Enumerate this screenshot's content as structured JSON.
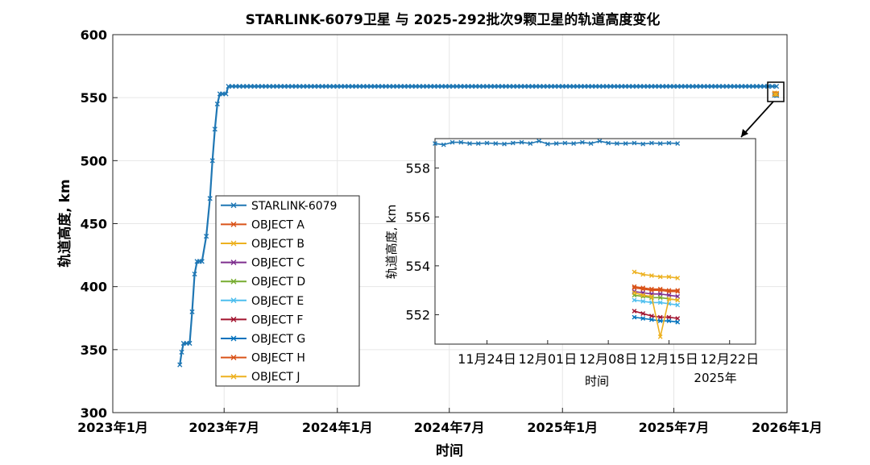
{
  "chart_data": [
    {
      "type": "line",
      "title": "STARLINK-6079卫星 与 2025-292批次9颗卫星的轨道高度变化",
      "xlabel": "时间",
      "ylabel": "轨道高度, km",
      "ylim": [
        300,
        600
      ],
      "yticks": [
        "300",
        "350",
        "400",
        "450",
        "500",
        "550",
        "600"
      ],
      "xticks": [
        "2023年1月",
        "2023年7月",
        "2024年1月",
        "2024年7月",
        "2025年1月",
        "2025年7月",
        "2026年1月"
      ],
      "grid": true,
      "legend_position": "center-left",
      "legend": [
        "STARLINK-6079",
        "OBJECT A",
        "OBJECT B",
        "OBJECT C",
        "OBJECT D",
        "OBJECT E",
        "OBJECT F",
        "OBJECT G",
        "OBJECT H",
        "OBJECT J"
      ],
      "series": [
        {
          "name": "STARLINK-6079",
          "color": "#1f77b4",
          "x": [
            "2023-04-20",
            "2023-04-23",
            "2023-04-26",
            "2023-05-01",
            "2023-05-06",
            "2023-05-10",
            "2023-05-14",
            "2023-05-18",
            "2023-05-22",
            "2023-05-26",
            "2023-06-02",
            "2023-06-08",
            "2023-06-12",
            "2023-06-16",
            "2023-06-20",
            "2023-06-24",
            "2023-06-28",
            "2023-07-04",
            "2023-07-08",
            "2023-08-01",
            "2023-10-01",
            "2024-01-01",
            "2024-04-01",
            "2024-07-01",
            "2024-10-01",
            "2025-01-01",
            "2025-04-01",
            "2025-07-01",
            "2025-10-01",
            "2025-12-01",
            "2025-12-15"
          ],
          "y": [
            338,
            348,
            355,
            355,
            355,
            380,
            410,
            420,
            420,
            420,
            440,
            470,
            500,
            525,
            545,
            553,
            553,
            553,
            559,
            559,
            559,
            559,
            559,
            559,
            559,
            559,
            559,
            559,
            559,
            559,
            559
          ]
        },
        {
          "name": "OBJECT A",
          "color": "#d95319",
          "x": [
            "2025-12-12",
            "2025-12-15"
          ],
          "y": [
            553.0,
            552.9
          ]
        },
        {
          "name": "OBJECT B",
          "color": "#edb120",
          "x": [
            "2025-12-12",
            "2025-12-15"
          ],
          "y": [
            553.7,
            553.5
          ]
        },
        {
          "name": "OBJECT C",
          "color": "#7e2f8e",
          "x": [
            "2025-12-12",
            "2025-12-15"
          ],
          "y": [
            552.9,
            552.8
          ]
        },
        {
          "name": "OBJECT D",
          "color": "#77ac30",
          "x": [
            "2025-12-12",
            "2025-12-15"
          ],
          "y": [
            552.7,
            552.6
          ]
        },
        {
          "name": "OBJECT E",
          "color": "#4dbeee",
          "x": [
            "2025-12-12",
            "2025-12-15"
          ],
          "y": [
            552.5,
            552.4
          ]
        },
        {
          "name": "OBJECT F",
          "color": "#a2142f",
          "x": [
            "2025-12-12",
            "2025-12-15"
          ],
          "y": [
            552.1,
            551.9
          ]
        },
        {
          "name": "OBJECT G",
          "color": "#0072bd",
          "x": [
            "2025-12-12",
            "2025-12-15"
          ],
          "y": [
            551.9,
            551.7
          ]
        },
        {
          "name": "OBJECT H",
          "color": "#d95319",
          "x": [
            "2025-12-12",
            "2025-12-15"
          ],
          "y": [
            553.1,
            553.0
          ]
        },
        {
          "name": "OBJECT J",
          "color": "#edb120",
          "x": [
            "2025-12-12",
            "2025-12-15"
          ],
          "y": [
            552.6,
            552.5
          ]
        }
      ]
    },
    {
      "type": "line",
      "xlabel": "时间",
      "ylabel": "轨道高度, km",
      "ylim": [
        550.8,
        559.2
      ],
      "yticks": [
        "552",
        "554",
        "556",
        "558"
      ],
      "xticks": [
        "11月24日",
        "12月01日",
        "12月08日",
        "12月15日",
        "12月22日"
      ],
      "x_secondary_label": "2025年",
      "grid": false,
      "series": [
        {
          "name": "STARLINK-6079",
          "color": "#1f77b4",
          "x": [
            "2025-11-18",
            "2025-11-19",
            "2025-11-20",
            "2025-11-21",
            "2025-11-22",
            "2025-11-23",
            "2025-11-24",
            "2025-11-25",
            "2025-11-26",
            "2025-11-27",
            "2025-11-28",
            "2025-11-29",
            "2025-11-30",
            "2025-12-01",
            "2025-12-02",
            "2025-12-03",
            "2025-12-04",
            "2025-12-05",
            "2025-12-06",
            "2025-12-07",
            "2025-12-08",
            "2025-12-09",
            "2025-12-10",
            "2025-12-11",
            "2025-12-12",
            "2025-12-13",
            "2025-12-14",
            "2025-12-15",
            "2025-12-16"
          ],
          "y": [
            559.0,
            558.95,
            559.05,
            559.05,
            559.0,
            559.0,
            559.02,
            559.0,
            558.98,
            559.02,
            559.05,
            559.0,
            559.1,
            558.98,
            559.0,
            559.02,
            559.0,
            559.05,
            559.0,
            559.1,
            559.02,
            559.0,
            559.0,
            559.02,
            558.98,
            559.02,
            559.0,
            559.02,
            559.0
          ]
        },
        {
          "name": "OBJECT A",
          "color": "#d95319",
          "x": [
            "2025-12-11",
            "2025-12-12",
            "2025-12-13",
            "2025-12-14",
            "2025-12-15",
            "2025-12-16"
          ],
          "y": [
            553.1,
            553.05,
            553.0,
            553.0,
            552.95,
            552.95
          ]
        },
        {
          "name": "OBJECT B",
          "color": "#edb120",
          "x": [
            "2025-12-11",
            "2025-12-12",
            "2025-12-13",
            "2025-12-14",
            "2025-12-15",
            "2025-12-16"
          ],
          "y": [
            553.75,
            553.65,
            553.6,
            553.55,
            553.55,
            553.5
          ]
        },
        {
          "name": "OBJECT C",
          "color": "#7e2f8e",
          "x": [
            "2025-12-11",
            "2025-12-12",
            "2025-12-13",
            "2025-12-14",
            "2025-12-15",
            "2025-12-16"
          ],
          "y": [
            552.95,
            552.9,
            552.85,
            552.85,
            552.8,
            552.75
          ]
        },
        {
          "name": "OBJECT D",
          "color": "#77ac30",
          "x": [
            "2025-12-11",
            "2025-12-12",
            "2025-12-13",
            "2025-12-14",
            "2025-12-15",
            "2025-12-16"
          ],
          "y": [
            552.8,
            552.75,
            552.7,
            552.7,
            552.65,
            552.6
          ]
        },
        {
          "name": "OBJECT E",
          "color": "#4dbeee",
          "x": [
            "2025-12-11",
            "2025-12-12",
            "2025-12-13",
            "2025-12-14",
            "2025-12-15",
            "2025-12-16"
          ],
          "y": [
            552.6,
            552.55,
            552.5,
            552.5,
            552.45,
            552.4
          ]
        },
        {
          "name": "OBJECT F",
          "color": "#a2142f",
          "x": [
            "2025-12-11",
            "2025-12-12",
            "2025-12-13",
            "2025-12-14",
            "2025-12-15",
            "2025-12-16"
          ],
          "y": [
            552.15,
            552.05,
            551.95,
            551.9,
            551.9,
            551.85
          ]
        },
        {
          "name": "OBJECT G",
          "color": "#0072bd",
          "x": [
            "2025-12-11",
            "2025-12-12",
            "2025-12-13",
            "2025-12-14",
            "2025-12-15",
            "2025-12-16"
          ],
          "y": [
            551.9,
            551.85,
            551.8,
            551.75,
            551.75,
            551.7
          ]
        },
        {
          "name": "OBJECT H",
          "color": "#d95319",
          "x": [
            "2025-12-11",
            "2025-12-12",
            "2025-12-13",
            "2025-12-14",
            "2025-12-15",
            "2025-12-16"
          ],
          "y": [
            553.15,
            553.1,
            553.05,
            553.05,
            553.0,
            553.0
          ]
        },
        {
          "name": "OBJECT J",
          "color": "#edb120",
          "x": [
            "2025-12-11",
            "2025-12-12",
            "2025-12-13",
            "2025-12-14",
            "2025-12-15",
            "2025-12-16"
          ],
          "y": [
            552.9,
            552.8,
            552.75,
            551.1,
            552.65,
            552.6
          ]
        }
      ]
    }
  ]
}
